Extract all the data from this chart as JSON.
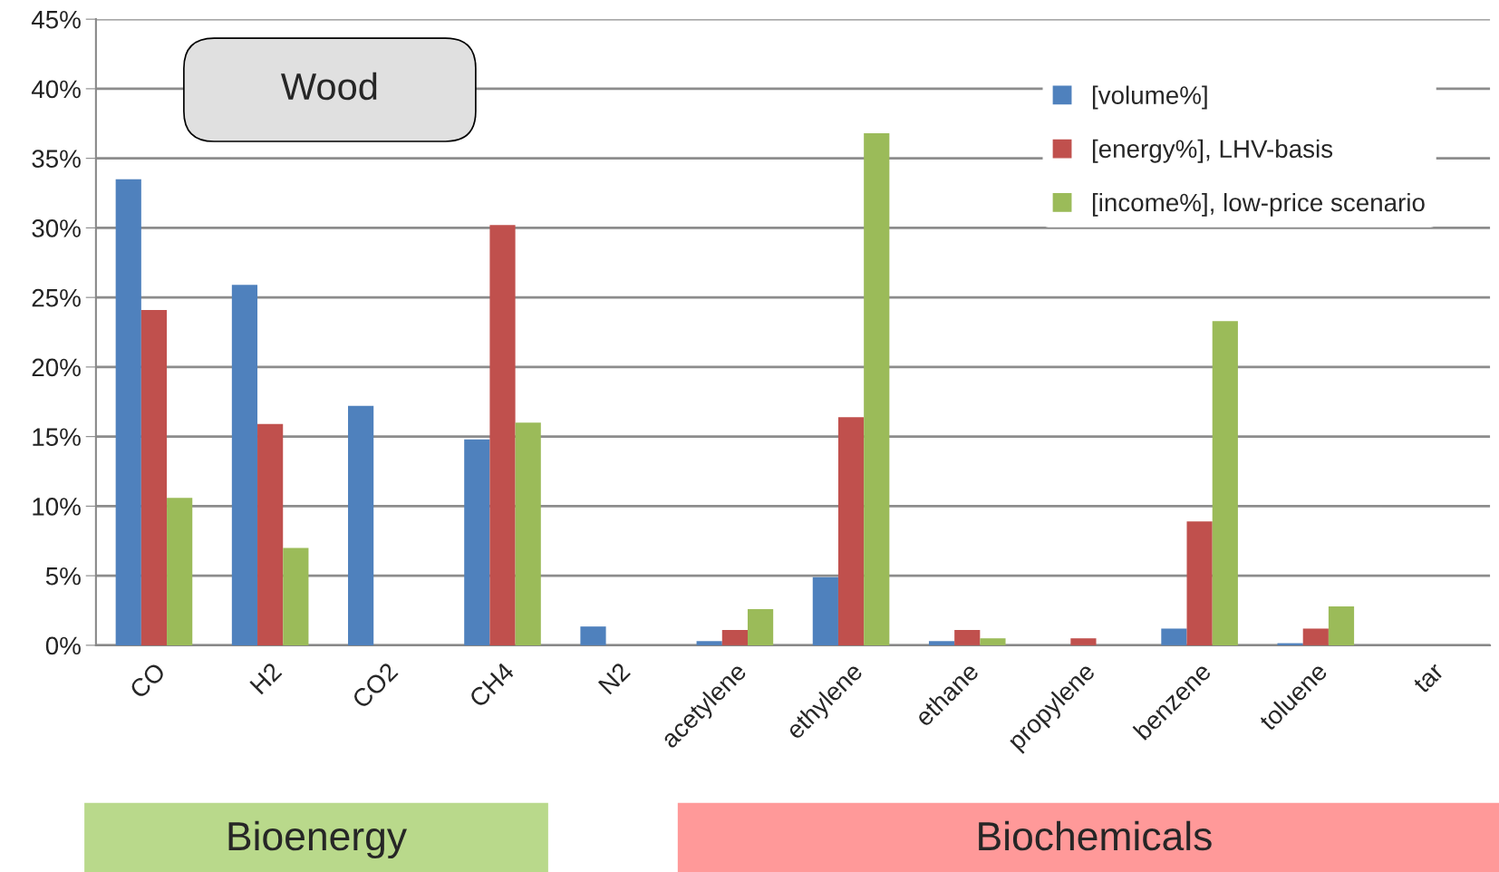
{
  "chart_data": {
    "type": "bar",
    "categories": [
      "CO",
      "H2",
      "CO2",
      "CH4",
      "N2",
      "acetylene",
      "ethylene",
      "ethane",
      "propylene",
      "benzene",
      "toluene",
      "tar"
    ],
    "series": [
      {
        "name": "[volume%]",
        "color": "#4f81bd",
        "values": [
          33.5,
          25.9,
          17.2,
          14.8,
          1.35,
          0.3,
          4.9,
          0.3,
          0,
          1.2,
          0.15,
          0
        ]
      },
      {
        "name": "[energy%], LHV-basis",
        "color": "#c0504d",
        "values": [
          24.1,
          15.9,
          0,
          30.2,
          0,
          1.1,
          16.4,
          1.1,
          0.5,
          8.9,
          1.2,
          0
        ]
      },
      {
        "name": "[income%], low-price scenario",
        "color": "#9bbb59",
        "values": [
          10.6,
          7.0,
          0,
          16.0,
          0,
          2.6,
          36.8,
          0.5,
          0,
          23.3,
          2.8,
          0
        ]
      }
    ],
    "ylim": [
      0,
      45
    ],
    "yticks": [
      {
        "value": 0,
        "label": "0%"
      },
      {
        "value": 5,
        "label": "5%"
      },
      {
        "value": 10,
        "label": "10%"
      },
      {
        "value": 15,
        "label": "15%"
      },
      {
        "value": 20,
        "label": "20%"
      },
      {
        "value": 25,
        "label": "25%"
      },
      {
        "value": 30,
        "label": "30%"
      },
      {
        "value": 35,
        "label": "35%"
      },
      {
        "value": 40,
        "label": "40%"
      },
      {
        "value": 45,
        "label": "45%"
      }
    ],
    "grid": "y",
    "legend": "top right",
    "annotations": [
      "Wood",
      "Bioenergy",
      "Biochemicals"
    ]
  }
}
